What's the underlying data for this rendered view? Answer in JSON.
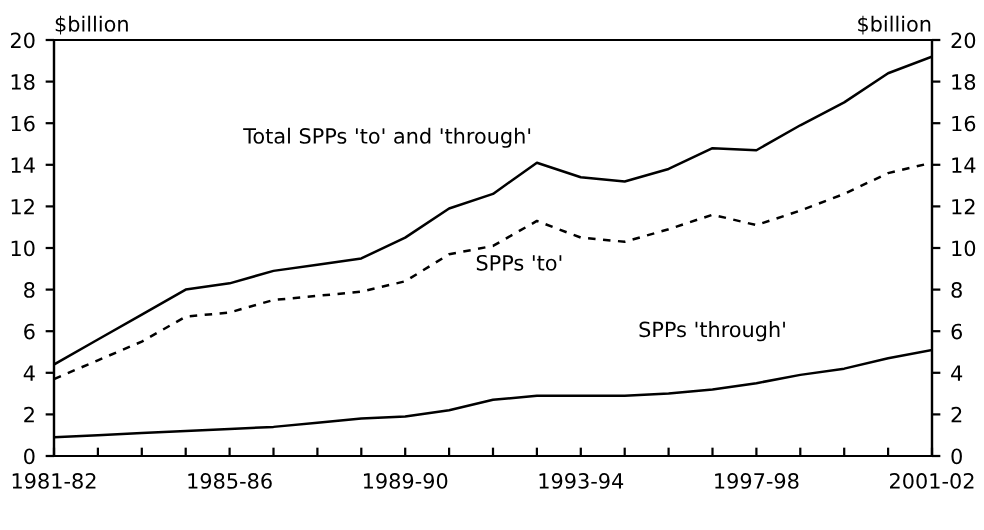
{
  "chart_data": {
    "type": "line",
    "ylabel": "$billion",
    "y2label": "$billion",
    "categories": [
      "1981-82",
      null,
      null,
      null,
      "1985-86",
      null,
      null,
      null,
      "1989-90",
      null,
      null,
      null,
      "1993-94",
      null,
      null,
      null,
      "1997-98",
      null,
      null,
      null,
      "2001-02"
    ],
    "series": [
      {
        "name": "Total SPPs 'to' and 'through'",
        "color": "#000000",
        "line_style": "solid",
        "values": [
          4.4,
          5.6,
          6.8,
          8.0,
          8.3,
          8.9,
          9.2,
          9.5,
          10.5,
          11.9,
          12.6,
          14.1,
          13.4,
          13.2,
          13.8,
          14.8,
          14.7,
          15.9,
          17.0,
          18.4,
          19.2
        ]
      },
      {
        "name": "SPPs 'to'",
        "color": "#000000",
        "line_style": "dashed",
        "values": [
          3.7,
          4.6,
          5.5,
          6.7,
          6.9,
          7.5,
          7.7,
          7.9,
          8.4,
          9.7,
          10.1,
          11.3,
          10.5,
          10.3,
          10.9,
          11.6,
          11.1,
          11.8,
          12.6,
          13.6,
          14.1
        ]
      },
      {
        "name": "SPPs 'through'",
        "color": "#000000",
        "line_style": "solid",
        "values": [
          0.9,
          1.0,
          1.1,
          1.2,
          1.3,
          1.4,
          1.6,
          1.8,
          1.9,
          2.2,
          2.7,
          2.9,
          2.9,
          2.9,
          3.0,
          3.2,
          3.5,
          3.9,
          4.2,
          4.7,
          5.1
        ]
      }
    ],
    "ylim": [
      0,
      20
    ],
    "yticks": [
      0,
      2,
      4,
      6,
      8,
      10,
      12,
      14,
      16,
      18,
      20
    ],
    "y2lim": [
      0,
      20
    ],
    "y2ticks": [
      0,
      2,
      4,
      6,
      8,
      10,
      12,
      14,
      16,
      18,
      20
    ],
    "grid": false,
    "legend": false,
    "marker": "none"
  }
}
